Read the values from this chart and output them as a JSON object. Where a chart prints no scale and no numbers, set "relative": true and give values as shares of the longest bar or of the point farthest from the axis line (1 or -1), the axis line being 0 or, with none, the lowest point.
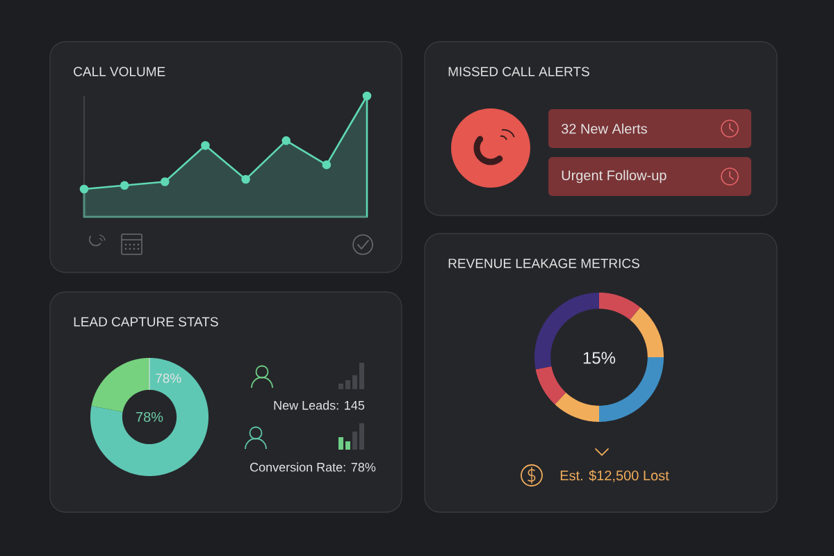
{
  "chart_data": [
    {
      "type": "area",
      "title": "CALL VOLUME",
      "categories": [
        null,
        null,
        null,
        null,
        null,
        null,
        null,
        null
      ],
      "relative": true,
      "marker": "circle",
      "series": [
        {
          "color": "#5fd9b5",
          "values": [
            0.23,
            0.26,
            0.29,
            0.59,
            0.31,
            0.63,
            0.43,
            1
          ]
        }
      ]
    },
    {
      "type": "other",
      "title": "MISSED CALL ALERTS",
      "annotations": [
        "32 New Alerts",
        "Urgent Follow-up"
      ]
    },
    {
      "type": "donut",
      "title": "LEAD CAPTURE STATS",
      "categories": [
        null,
        null
      ],
      "values": [
        78,
        22
      ],
      "colors": [
        "#5fc8b4",
        "#76d27e"
      ],
      "value_labels": [
        "78%",
        null
      ],
      "annotations": [
        "78%",
        "New Leads: 145",
        "Conversion Rate: 78%"
      ]
    },
    {
      "type": "donut",
      "title": "REVENUE LEAKAGE METRICS",
      "categories": [
        null,
        null,
        null,
        null,
        null,
        null
      ],
      "values": [
        11,
        14,
        25,
        12,
        10,
        28
      ],
      "colors": [
        "#d14b55",
        "#f2ad5b",
        "#3f8fc4",
        "#f2ad5b",
        "#d14b55",
        "#3d2f7a"
      ],
      "annotations": [
        "15%",
        "Est. $12,500 Lost"
      ]
    }
  ]
}
